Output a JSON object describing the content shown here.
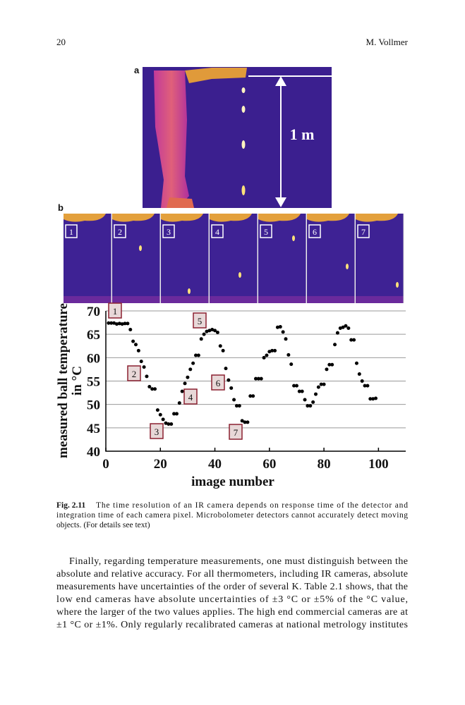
{
  "header": {
    "page_number": "20",
    "author": "M. Vollmer"
  },
  "figure": {
    "panel_a": "a",
    "panel_b": "b",
    "scale_label": "1 m",
    "frames": [
      "1",
      "2",
      "3",
      "4",
      "5",
      "6",
      "7"
    ]
  },
  "chart_data": {
    "type": "scatter",
    "xlabel": "image number",
    "ylabel": [
      "measured ball temperature",
      "in °C"
    ],
    "x": [
      1,
      2,
      3,
      4,
      5,
      6,
      7,
      8,
      9,
      10,
      11,
      12,
      13,
      14,
      15,
      16,
      17,
      18,
      19,
      20,
      21,
      22,
      23,
      24,
      25,
      26,
      27,
      28,
      29,
      30,
      31,
      32,
      33,
      34,
      35,
      36,
      37,
      38,
      39,
      40,
      41,
      42,
      43,
      44,
      45,
      46,
      47,
      48,
      49,
      50,
      51,
      52,
      53,
      54,
      55,
      56,
      57,
      58,
      59,
      60,
      61,
      62,
      63,
      64,
      65,
      66,
      67,
      68,
      69,
      70,
      71,
      72,
      73,
      74,
      75,
      76,
      77,
      78,
      79,
      80,
      81,
      82,
      83,
      84,
      85,
      86,
      87,
      88,
      89,
      90,
      91,
      92,
      93,
      94,
      95,
      96,
      97,
      98,
      99
    ],
    "values": [
      67.4,
      67.4,
      67.4,
      67.2,
      67.3,
      67.2,
      67.3,
      67.3,
      66,
      63.5,
      62.8,
      61.5,
      59.2,
      58,
      56,
      53.8,
      53.3,
      53.3,
      48.8,
      47.8,
      46.8,
      46,
      45.8,
      45.8,
      48,
      48,
      50.3,
      52.8,
      54.5,
      55.8,
      57.5,
      58.8,
      60.5,
      60.5,
      64,
      65,
      65.6,
      65.8,
      66,
      65.8,
      65.4,
      62.5,
      61.5,
      57.7,
      55.2,
      53.5,
      51,
      49.7,
      49.7,
      46.5,
      46.2,
      46.2,
      51.8,
      51.8,
      55.5,
      55.5,
      55.5,
      60,
      60.5,
      61.3,
      61.5,
      61.5,
      66.5,
      66.6,
      65.5,
      64,
      60.6,
      58.6,
      54,
      54,
      52.8,
      52.8,
      51,
      49.7,
      49.7,
      50.5,
      52.2,
      53.7,
      54.3,
      54.3,
      57.5,
      58.5,
      58.5,
      62.8,
      65.3,
      66.3,
      66.5,
      66.8,
      66.3,
      63.8,
      63.8,
      58.8,
      56.5,
      55,
      54,
      54,
      51.2,
      51.2,
      51.3
    ],
    "color": "#000000",
    "xlim": [
      0,
      110
    ],
    "xticks": [
      0,
      20,
      40,
      60,
      80,
      100
    ],
    "ylim": [
      40,
      70
    ],
    "yticks": [
      40,
      45,
      50,
      55,
      60,
      65,
      70
    ],
    "grid": true,
    "annotations": [
      "1",
      "2",
      "3",
      "4",
      "5",
      "6",
      "7"
    ]
  },
  "caption": {
    "label": "Fig. 2.11",
    "lines": [
      "The time resolution of an IR camera depends on response time of the detector and",
      "integration time of each camera pixel. Microbolometer detectors cannot accurately detect moving",
      "objects. (For details see text)"
    ]
  },
  "body": {
    "lines": [
      "Finally, regarding temperature measurements, one must distinguish between the",
      "absolute and relative accuracy. For all thermometers, including IR cameras, absolute",
      "measurements have uncertainties of the order of several K. Table 2.1 shows, that the",
      "low end cameras have absolute uncertainties of ±3 °C or ±5% of the °C value,",
      "where the larger of the two values applies. The high end commercial cameras are at",
      "±1 °C or ±1%. Only regularly recalibrated cameras at national metrology institutes"
    ]
  }
}
